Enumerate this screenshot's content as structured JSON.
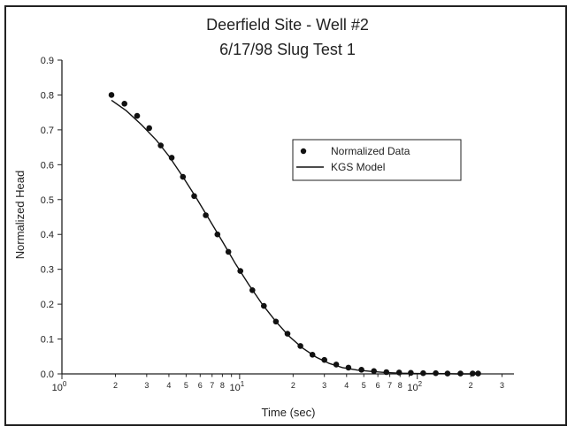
{
  "chart_data": {
    "type": "scatter",
    "title": "Deerfield Site - Well #2",
    "subtitle": "6/17/98 Slug Test 1",
    "xlabel": "Time (sec)",
    "ylabel": "Normalized Head",
    "x_scale": "log",
    "xlim": [
      1,
      350
    ],
    "ylim": [
      0,
      0.9
    ],
    "y_ticks": [
      "0.0",
      "0.1",
      "0.2",
      "0.3",
      "0.4",
      "0.5",
      "0.6",
      "0.7",
      "0.8",
      "0.9"
    ],
    "x_major_ticks": [
      {
        "value": 1,
        "base": "10",
        "exp": "0"
      },
      {
        "value": 10,
        "base": "10",
        "exp": "1"
      },
      {
        "value": 100,
        "base": "10",
        "exp": "2"
      }
    ],
    "x_minor_tick_labels": [
      {
        "value": 2,
        "label": "2"
      },
      {
        "value": 3,
        "label": "3"
      },
      {
        "value": 4,
        "label": "4"
      },
      {
        "value": 5,
        "label": "5"
      },
      {
        "value": 6,
        "label": "6"
      },
      {
        "value": 7,
        "label": "7"
      },
      {
        "value": 8,
        "label": "8"
      },
      {
        "value": 20,
        "label": "2"
      },
      {
        "value": 30,
        "label": "3"
      },
      {
        "value": 40,
        "label": "4"
      },
      {
        "value": 50,
        "label": "5"
      },
      {
        "value": 60,
        "label": "6"
      },
      {
        "value": 70,
        "label": "7"
      },
      {
        "value": 80,
        "label": "8"
      },
      {
        "value": 200,
        "label": "2"
      },
      {
        "value": 300,
        "label": "3"
      }
    ],
    "legend_position": "upper-right",
    "series": [
      {
        "name": "Normalized Data",
        "style": "points",
        "x": [
          1.9,
          2.25,
          2.65,
          3.1,
          3.6,
          4.15,
          4.8,
          5.55,
          6.45,
          7.5,
          8.65,
          10.1,
          11.8,
          13.7,
          16.0,
          18.6,
          22.0,
          25.7,
          30.0,
          35.0,
          41.0,
          48.5,
          57.0,
          67.0,
          79.0,
          92.0,
          108.0,
          127.0,
          148.0,
          175.0,
          205.0,
          220.0
        ],
        "y": [
          0.8,
          0.775,
          0.74,
          0.705,
          0.655,
          0.62,
          0.565,
          0.51,
          0.455,
          0.4,
          0.35,
          0.295,
          0.24,
          0.195,
          0.15,
          0.115,
          0.08,
          0.055,
          0.04,
          0.027,
          0.018,
          0.012,
          0.008,
          0.005,
          0.004,
          0.003,
          0.002,
          0.002,
          0.001,
          0.001,
          0.001,
          0.001
        ]
      },
      {
        "name": "KGS Model",
        "style": "line",
        "x": [
          1.9,
          2.3,
          2.8,
          3.4,
          4.0,
          4.8,
          5.7,
          6.8,
          8.0,
          9.5,
          11.3,
          13.4,
          16.0,
          19.0,
          22.5,
          27.0,
          32.0,
          38.0,
          46.0,
          55.0,
          66.0,
          80.0,
          100.0,
          130.0,
          170.0,
          220.0
        ],
        "y": [
          0.785,
          0.755,
          0.715,
          0.67,
          0.625,
          0.565,
          0.505,
          0.44,
          0.38,
          0.315,
          0.255,
          0.2,
          0.15,
          0.108,
          0.075,
          0.048,
          0.03,
          0.018,
          0.011,
          0.007,
          0.004,
          0.002,
          0.001,
          0.001,
          0.0,
          0.0
        ]
      }
    ],
    "colors": {
      "points": "#111111",
      "line": "#111111",
      "frame": "#222222"
    }
  }
}
